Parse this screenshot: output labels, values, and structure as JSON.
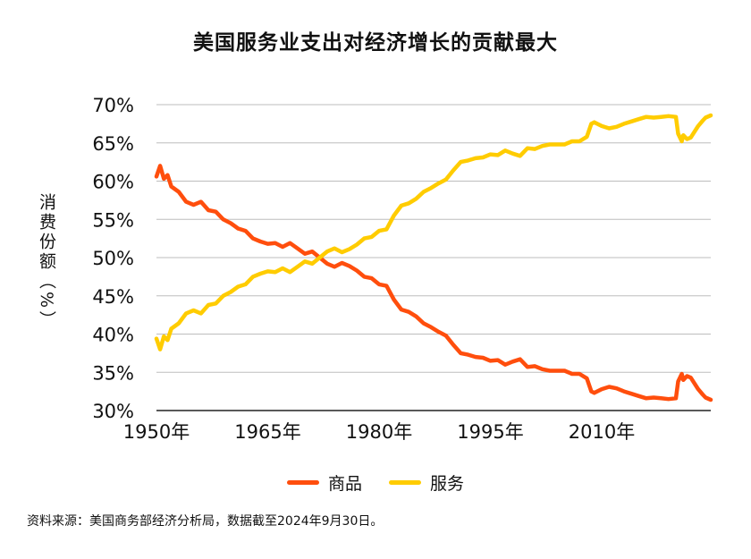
{
  "chart_data": {
    "type": "line",
    "title": "美国服务业支出对经济增长的贡献最大",
    "ylabel": "消费份额（%）",
    "xlabel": "",
    "ylim": [
      30,
      70
    ],
    "xlim": [
      1950,
      2024.7
    ],
    "y_ticks": [
      "30%",
      "35%",
      "40%",
      "45%",
      "50%",
      "55%",
      "60%",
      "65%",
      "70%"
    ],
    "y_tick_values": [
      30,
      35,
      40,
      45,
      50,
      55,
      60,
      65,
      70
    ],
    "x_ticks": [
      "1950年",
      "1965年",
      "1980年",
      "1995年",
      "2010年"
    ],
    "x_tick_values": [
      1950,
      1965,
      1980,
      1995,
      2010
    ],
    "grid": true,
    "legend_position": "bottom",
    "series": [
      {
        "name": "商品",
        "color": "#FF4E0D",
        "points": [
          [
            1950.0,
            60.6
          ],
          [
            1950.5,
            62.0
          ],
          [
            1951.0,
            60.3
          ],
          [
            1951.5,
            60.8
          ],
          [
            1952.0,
            59.3
          ],
          [
            1953.0,
            58.6
          ],
          [
            1954.0,
            57.3
          ],
          [
            1955.0,
            56.9
          ],
          [
            1956.0,
            57.3
          ],
          [
            1957.0,
            56.2
          ],
          [
            1958.0,
            56.0
          ],
          [
            1959.0,
            55.0
          ],
          [
            1960.0,
            54.5
          ],
          [
            1961.0,
            53.8
          ],
          [
            1962.0,
            53.5
          ],
          [
            1963.0,
            52.5
          ],
          [
            1964.0,
            52.1
          ],
          [
            1965.0,
            51.8
          ],
          [
            1966.0,
            51.9
          ],
          [
            1967.0,
            51.4
          ],
          [
            1968.0,
            51.9
          ],
          [
            1969.0,
            51.2
          ],
          [
            1970.0,
            50.5
          ],
          [
            1971.0,
            50.8
          ],
          [
            1972.0,
            50.0
          ],
          [
            1973.0,
            49.2
          ],
          [
            1974.0,
            48.8
          ],
          [
            1975.0,
            49.3
          ],
          [
            1976.0,
            48.9
          ],
          [
            1977.0,
            48.3
          ],
          [
            1978.0,
            47.5
          ],
          [
            1979.0,
            47.3
          ],
          [
            1980.0,
            46.5
          ],
          [
            1981.0,
            46.3
          ],
          [
            1982.0,
            44.5
          ],
          [
            1983.0,
            43.2
          ],
          [
            1984.0,
            42.9
          ],
          [
            1985.0,
            42.3
          ],
          [
            1986.0,
            41.4
          ],
          [
            1987.0,
            40.9
          ],
          [
            1988.0,
            40.3
          ],
          [
            1989.0,
            39.8
          ],
          [
            1990.0,
            38.6
          ],
          [
            1991.0,
            37.5
          ],
          [
            1992.0,
            37.3
          ],
          [
            1993.0,
            37.0
          ],
          [
            1994.0,
            36.9
          ],
          [
            1995.0,
            36.5
          ],
          [
            1996.0,
            36.6
          ],
          [
            1997.0,
            36.0
          ],
          [
            1998.0,
            36.4
          ],
          [
            1999.0,
            36.7
          ],
          [
            2000.0,
            35.7
          ],
          [
            2001.0,
            35.8
          ],
          [
            2002.0,
            35.4
          ],
          [
            2003.0,
            35.2
          ],
          [
            2004.0,
            35.2
          ],
          [
            2005.0,
            35.2
          ],
          [
            2006.0,
            34.8
          ],
          [
            2007.0,
            34.8
          ],
          [
            2008.0,
            34.2
          ],
          [
            2008.6,
            32.5
          ],
          [
            2009.0,
            32.3
          ],
          [
            2010.0,
            32.8
          ],
          [
            2011.0,
            33.1
          ],
          [
            2012.0,
            32.9
          ],
          [
            2013.0,
            32.5
          ],
          [
            2014.0,
            32.2
          ],
          [
            2015.0,
            31.9
          ],
          [
            2016.0,
            31.6
          ],
          [
            2017.0,
            31.7
          ],
          [
            2018.0,
            31.6
          ],
          [
            2019.0,
            31.5
          ],
          [
            2020.0,
            31.6
          ],
          [
            2020.3,
            33.8
          ],
          [
            2020.8,
            34.8
          ],
          [
            2021.0,
            34.0
          ],
          [
            2021.5,
            34.5
          ],
          [
            2022.0,
            34.3
          ],
          [
            2023.0,
            32.8
          ],
          [
            2023.6,
            32.1
          ],
          [
            2024.0,
            31.7
          ],
          [
            2024.7,
            31.4
          ]
        ]
      },
      {
        "name": "服务",
        "color": "#FFCC00",
        "points": [
          [
            1950.0,
            39.4
          ],
          [
            1950.5,
            38.0
          ],
          [
            1951.0,
            39.7
          ],
          [
            1951.5,
            39.2
          ],
          [
            1952.0,
            40.7
          ],
          [
            1953.0,
            41.4
          ],
          [
            1954.0,
            42.7
          ],
          [
            1955.0,
            43.1
          ],
          [
            1956.0,
            42.7
          ],
          [
            1957.0,
            43.8
          ],
          [
            1958.0,
            44.0
          ],
          [
            1959.0,
            45.0
          ],
          [
            1960.0,
            45.5
          ],
          [
            1961.0,
            46.2
          ],
          [
            1962.0,
            46.5
          ],
          [
            1963.0,
            47.5
          ],
          [
            1964.0,
            47.9
          ],
          [
            1965.0,
            48.2
          ],
          [
            1966.0,
            48.1
          ],
          [
            1967.0,
            48.6
          ],
          [
            1968.0,
            48.1
          ],
          [
            1969.0,
            48.8
          ],
          [
            1970.0,
            49.5
          ],
          [
            1971.0,
            49.2
          ],
          [
            1972.0,
            50.0
          ],
          [
            1973.0,
            50.8
          ],
          [
            1974.0,
            51.2
          ],
          [
            1975.0,
            50.7
          ],
          [
            1976.0,
            51.1
          ],
          [
            1977.0,
            51.7
          ],
          [
            1978.0,
            52.5
          ],
          [
            1979.0,
            52.7
          ],
          [
            1980.0,
            53.5
          ],
          [
            1981.0,
            53.7
          ],
          [
            1982.0,
            55.5
          ],
          [
            1983.0,
            56.8
          ],
          [
            1984.0,
            57.1
          ],
          [
            1985.0,
            57.7
          ],
          [
            1986.0,
            58.6
          ],
          [
            1987.0,
            59.1
          ],
          [
            1988.0,
            59.7
          ],
          [
            1989.0,
            60.2
          ],
          [
            1990.0,
            61.4
          ],
          [
            1991.0,
            62.5
          ],
          [
            1992.0,
            62.7
          ],
          [
            1993.0,
            63.0
          ],
          [
            1994.0,
            63.1
          ],
          [
            1995.0,
            63.5
          ],
          [
            1996.0,
            63.4
          ],
          [
            1997.0,
            64.0
          ],
          [
            1998.0,
            63.6
          ],
          [
            1999.0,
            63.3
          ],
          [
            2000.0,
            64.3
          ],
          [
            2001.0,
            64.2
          ],
          [
            2002.0,
            64.6
          ],
          [
            2003.0,
            64.8
          ],
          [
            2004.0,
            64.8
          ],
          [
            2005.0,
            64.8
          ],
          [
            2006.0,
            65.2
          ],
          [
            2007.0,
            65.2
          ],
          [
            2008.0,
            65.8
          ],
          [
            2008.6,
            67.5
          ],
          [
            2009.0,
            67.7
          ],
          [
            2010.0,
            67.2
          ],
          [
            2011.0,
            66.9
          ],
          [
            2012.0,
            67.1
          ],
          [
            2013.0,
            67.5
          ],
          [
            2014.0,
            67.8
          ],
          [
            2015.0,
            68.1
          ],
          [
            2016.0,
            68.4
          ],
          [
            2017.0,
            68.3
          ],
          [
            2018.0,
            68.4
          ],
          [
            2019.0,
            68.5
          ],
          [
            2020.0,
            68.4
          ],
          [
            2020.3,
            66.2
          ],
          [
            2020.8,
            65.2
          ],
          [
            2021.0,
            66.0
          ],
          [
            2021.5,
            65.5
          ],
          [
            2022.0,
            65.7
          ],
          [
            2023.0,
            67.2
          ],
          [
            2023.6,
            67.9
          ],
          [
            2024.0,
            68.3
          ],
          [
            2024.7,
            68.6
          ]
        ]
      }
    ],
    "source": "资料来源：美国商务部经济分析局，数据截至2024年9月30日。"
  }
}
